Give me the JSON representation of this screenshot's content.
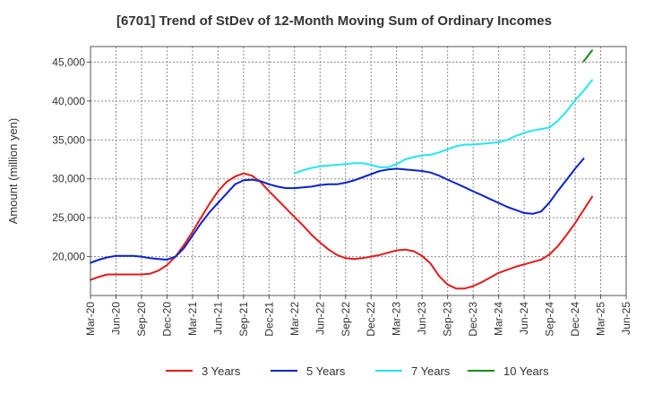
{
  "chart_data": {
    "type": "line",
    "title": "[6701]  Trend of StDev of 12-Month Moving Sum of Ordinary Incomes",
    "xlabel": "",
    "ylabel": "Amount (million yen)",
    "ylim": [
      15000,
      47000
    ],
    "yticks": [
      20000,
      25000,
      30000,
      35000,
      40000,
      45000
    ],
    "ytick_labels": [
      "20,000",
      "25,000",
      "30,000",
      "35,000",
      "40,000",
      "45,000"
    ],
    "x_start": "Mar-20",
    "xtick_labels": [
      "Mar-20",
      "Jun-20",
      "Sep-20",
      "Dec-20",
      "Mar-21",
      "Jun-21",
      "Sep-21",
      "Dec-21",
      "Mar-22",
      "Jun-22",
      "Sep-22",
      "Dec-22",
      "Mar-23",
      "Jun-23",
      "Sep-23",
      "Dec-23",
      "Mar-24",
      "Jun-24",
      "Sep-24",
      "Dec-24",
      "Mar-25",
      "Jun-25"
    ],
    "grid": true,
    "legend_position": "bottom",
    "series": [
      {
        "name": "3 Years",
        "color": "#e31a1c",
        "start_month": 0,
        "values": [
          17000,
          17400,
          17700,
          17700,
          17700,
          17700,
          17700,
          17800,
          18200,
          18900,
          20000,
          21500,
          23200,
          25000,
          26800,
          28400,
          29600,
          30300,
          30700,
          30400,
          29600,
          28400,
          27300,
          26200,
          25100,
          24000,
          22800,
          21800,
          20900,
          20200,
          19800,
          19700,
          19800,
          20000,
          20200,
          20500,
          20800,
          20900,
          20700,
          20100,
          19100,
          17500,
          16400,
          15900,
          15900,
          16200,
          16700,
          17300,
          17900,
          18300,
          18700,
          19000,
          19300,
          19600,
          20300,
          21400,
          22800,
          24300,
          26000,
          27700
        ]
      },
      {
        "name": "5 Years",
        "color": "#0a22c9",
        "start_month": 0,
        "values": [
          19200,
          19600,
          19900,
          20100,
          20100,
          20100,
          20000,
          19800,
          19700,
          19600,
          20000,
          21100,
          22700,
          24300,
          25700,
          26900,
          28100,
          29300,
          29800,
          29900,
          29700,
          29300,
          29000,
          28800,
          28800,
          28900,
          29000,
          29200,
          29300,
          29300,
          29500,
          29800,
          30200,
          30600,
          31000,
          31200,
          31300,
          31200,
          31100,
          31000,
          30800,
          30400,
          29900,
          29400,
          28900,
          28400,
          27900,
          27400,
          26900,
          26400,
          26000,
          25600,
          25500,
          25800,
          27000,
          28500,
          29900,
          31300,
          32600
        ]
      },
      {
        "name": "7 Years",
        "color": "#22e6f2",
        "start_month": 24,
        "values": [
          30700,
          31100,
          31400,
          31600,
          31700,
          31800,
          31900,
          32000,
          32000,
          31800,
          31500,
          31500,
          31900,
          32500,
          32800,
          33000,
          33100,
          33400,
          33800,
          34200,
          34400,
          34400,
          34500,
          34600,
          34700,
          35000,
          35500,
          35900,
          36200,
          36400,
          36600,
          37500,
          38700,
          40100,
          41300,
          42700
        ]
      },
      {
        "name": "10 Years",
        "color": "#1b8a1b",
        "start_month": 58,
        "values": [
          45100,
          46500
        ]
      }
    ]
  }
}
